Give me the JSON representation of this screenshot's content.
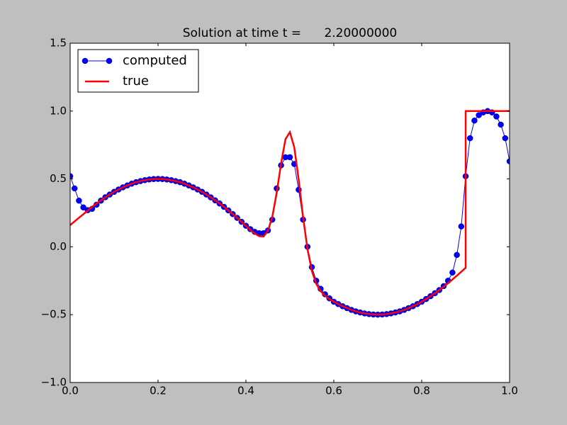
{
  "chart_data": {
    "type": "line",
    "title": "Solution at time t =      2.20000000",
    "xlim": [
      0,
      1
    ],
    "ylim": [
      -1,
      1.5
    ],
    "xticks": [
      {
        "value": 0,
        "label": "0.0"
      },
      {
        "value": 0.2,
        "label": "0.2"
      },
      {
        "value": 0.4,
        "label": "0.4"
      },
      {
        "value": 0.6,
        "label": "0.6"
      },
      {
        "value": 0.8,
        "label": "0.8"
      },
      {
        "value": 1,
        "label": "1.0"
      }
    ],
    "yticks": [
      {
        "value": -1,
        "label": "−1.0"
      },
      {
        "value": -0.5,
        "label": "−0.5"
      },
      {
        "value": 0,
        "label": "0.0"
      },
      {
        "value": 0.5,
        "label": "0.5"
      },
      {
        "value": 1,
        "label": "1.0"
      },
      {
        "value": 1.5,
        "label": "1.5"
      }
    ],
    "legend": "upper left",
    "series": [
      {
        "name": "computed",
        "color": "#0000ff",
        "marker": "o",
        "x": [
          0,
          0.01,
          0.02,
          0.03,
          0.04,
          0.05,
          0.06,
          0.07,
          0.08,
          0.09,
          0.1,
          0.11,
          0.12,
          0.13,
          0.14,
          0.15,
          0.16,
          0.17,
          0.18,
          0.19,
          0.2,
          0.21,
          0.22,
          0.23,
          0.24,
          0.25,
          0.26,
          0.27,
          0.28,
          0.29,
          0.3,
          0.31,
          0.32,
          0.33,
          0.34,
          0.35,
          0.36,
          0.37,
          0.38,
          0.39,
          0.4,
          0.41,
          0.42,
          0.43,
          0.44,
          0.45,
          0.46,
          0.47,
          0.48,
          0.49,
          0.5,
          0.51,
          0.52,
          0.53,
          0.54,
          0.55,
          0.56,
          0.57,
          0.58,
          0.59,
          0.6,
          0.61,
          0.62,
          0.63,
          0.64,
          0.65,
          0.66,
          0.67,
          0.68,
          0.69,
          0.7,
          0.71,
          0.72,
          0.73,
          0.74,
          0.75,
          0.76,
          0.77,
          0.78,
          0.79,
          0.8,
          0.81,
          0.82,
          0.83,
          0.84,
          0.85,
          0.86,
          0.87,
          0.88,
          0.89,
          0.9,
          0.91,
          0.92,
          0.93,
          0.94,
          0.95,
          0.96,
          0.97,
          0.98,
          0.99,
          1
        ],
        "values": [
          0.52,
          0.43,
          0.34,
          0.29,
          0.27,
          0.28,
          0.31,
          0.34,
          0.365,
          0.385,
          0.405,
          0.422,
          0.438,
          0.452,
          0.465,
          0.476,
          0.484,
          0.491,
          0.496,
          0.499,
          0.5,
          0.499,
          0.496,
          0.491,
          0.484,
          0.476,
          0.465,
          0.452,
          0.438,
          0.422,
          0.405,
          0.385,
          0.364,
          0.342,
          0.319,
          0.294,
          0.268,
          0.241,
          0.213,
          0.184,
          0.155,
          0.13,
          0.11,
          0.1,
          0.1,
          0.12,
          0.2,
          0.43,
          0.6,
          0.66,
          0.66,
          0.61,
          0.42,
          0.2,
          0,
          -0.15,
          -0.25,
          -0.31,
          -0.35,
          -0.38,
          -0.405,
          -0.422,
          -0.438,
          -0.452,
          -0.465,
          -0.476,
          -0.484,
          -0.491,
          -0.496,
          -0.499,
          -0.5,
          -0.499,
          -0.496,
          -0.491,
          -0.484,
          -0.476,
          -0.465,
          -0.452,
          -0.438,
          -0.422,
          -0.405,
          -0.385,
          -0.364,
          -0.342,
          -0.319,
          -0.29,
          -0.25,
          -0.19,
          -0.06,
          0.15,
          0.52,
          0.8,
          0.93,
          0.97,
          0.99,
          1,
          0.99,
          0.96,
          0.9,
          0.8,
          0.63
        ]
      },
      {
        "name": "true",
        "color": "#ff0000",
        "x": [
          0,
          0.01,
          0.02,
          0.03,
          0.04,
          0.05,
          0.06,
          0.07,
          0.08,
          0.09,
          0.1,
          0.11,
          0.12,
          0.13,
          0.14,
          0.15,
          0.16,
          0.17,
          0.18,
          0.19,
          0.2,
          0.21,
          0.22,
          0.23,
          0.24,
          0.25,
          0.26,
          0.27,
          0.28,
          0.29,
          0.3,
          0.31,
          0.32,
          0.33,
          0.34,
          0.35,
          0.36,
          0.37,
          0.38,
          0.39,
          0.4,
          0.41,
          0.42,
          0.43,
          0.44,
          0.45,
          0.46,
          0.47,
          0.48,
          0.49,
          0.5,
          0.51,
          0.52,
          0.53,
          0.54,
          0.55,
          0.56,
          0.57,
          0.58,
          0.59,
          0.6,
          0.61,
          0.62,
          0.63,
          0.64,
          0.65,
          0.66,
          0.67,
          0.68,
          0.69,
          0.7,
          0.71,
          0.72,
          0.73,
          0.74,
          0.75,
          0.76,
          0.77,
          0.78,
          0.79,
          0.8,
          0.81,
          0.82,
          0.83,
          0.84,
          0.85,
          0.86,
          0.87,
          0.88,
          0.89,
          0.9,
          0.9,
          0.91,
          0.92,
          0.93,
          0.94,
          0.95,
          0.96,
          0.97,
          0.98,
          0.99,
          1
        ],
        "values": [
          0.16,
          0.187,
          0.214,
          0.24,
          0.267,
          0.294,
          0.319,
          0.342,
          0.364,
          0.385,
          0.405,
          0.422,
          0.438,
          0.452,
          0.465,
          0.476,
          0.484,
          0.491,
          0.496,
          0.499,
          0.5,
          0.499,
          0.496,
          0.491,
          0.484,
          0.476,
          0.465,
          0.452,
          0.438,
          0.422,
          0.405,
          0.385,
          0.364,
          0.342,
          0.319,
          0.294,
          0.268,
          0.241,
          0.213,
          0.184,
          0.155,
          0.124,
          0.098,
          0.078,
          0.076,
          0.116,
          0.221,
          0.397,
          0.614,
          0.793,
          0.845,
          0.733,
          0.495,
          0.219,
          -0.016,
          -0.178,
          -0.274,
          -0.327,
          -0.36,
          -0.385,
          -0.405,
          -0.422,
          -0.438,
          -0.452,
          -0.465,
          -0.476,
          -0.484,
          -0.491,
          -0.496,
          -0.499,
          -0.5,
          -0.499,
          -0.496,
          -0.491,
          -0.484,
          -0.476,
          -0.465,
          -0.452,
          -0.438,
          -0.422,
          -0.405,
          -0.385,
          -0.364,
          -0.342,
          -0.319,
          -0.294,
          -0.268,
          -0.241,
          -0.213,
          -0.184,
          -0.155,
          1,
          1,
          1,
          1,
          1,
          1,
          1,
          1,
          1,
          1,
          1
        ]
      }
    ]
  }
}
